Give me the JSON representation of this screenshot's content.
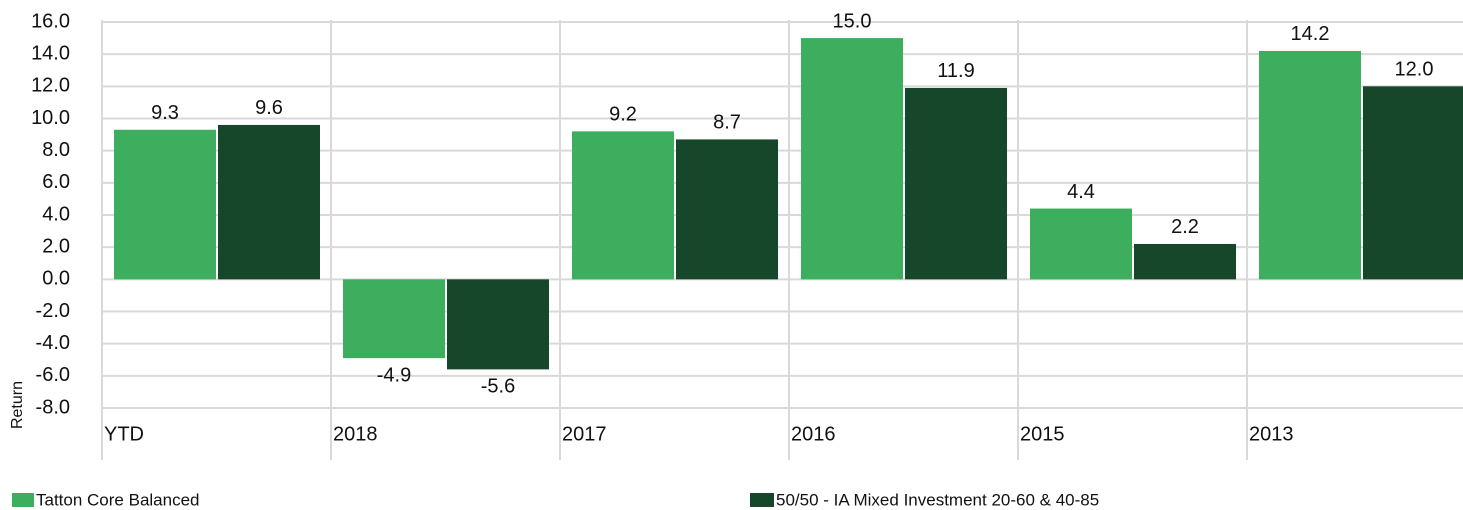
{
  "chart_data": {
    "type": "bar",
    "y_label": "Return",
    "categories": [
      "YTD",
      "2018",
      "2017",
      "2016",
      "2015",
      "2013"
    ],
    "series": [
      {
        "name": "Tatton Core Balanced",
        "color": "#3dae5e",
        "values": [
          9.3,
          -4.9,
          9.2,
          15.0,
          4.4,
          14.2
        ],
        "value_labels": [
          "9.3",
          "-4.9",
          "9.2",
          "15.0",
          "4.4",
          "14.2"
        ]
      },
      {
        "name": "50/50 - IA Mixed Investment 20-60 & 40-85",
        "color": "#17472a",
        "values": [
          9.6,
          -5.6,
          8.7,
          11.9,
          2.2,
          12.0
        ],
        "value_labels": [
          "9.6",
          "-5.6",
          "8.7",
          "11.9",
          "2.2",
          "12.0"
        ]
      }
    ],
    "ylim": [
      -8,
      16
    ],
    "yticks": [
      {
        "value": -8,
        "label": "-8.0"
      },
      {
        "value": -6,
        "label": "-6.0"
      },
      {
        "value": -4,
        "label": "-4.0"
      },
      {
        "value": -2,
        "label": "-2.0"
      },
      {
        "value": 0,
        "label": "0.0"
      },
      {
        "value": 2,
        "label": "2.0"
      },
      {
        "value": 4,
        "label": "4.0"
      },
      {
        "value": 6,
        "label": "6.0"
      },
      {
        "value": 8,
        "label": "8.0"
      },
      {
        "value": 10,
        "label": "10.0"
      },
      {
        "value": 12,
        "label": "12.0"
      },
      {
        "value": 14,
        "label": "14.0"
      },
      {
        "value": 16,
        "label": "16.0"
      }
    ],
    "grid": true
  }
}
